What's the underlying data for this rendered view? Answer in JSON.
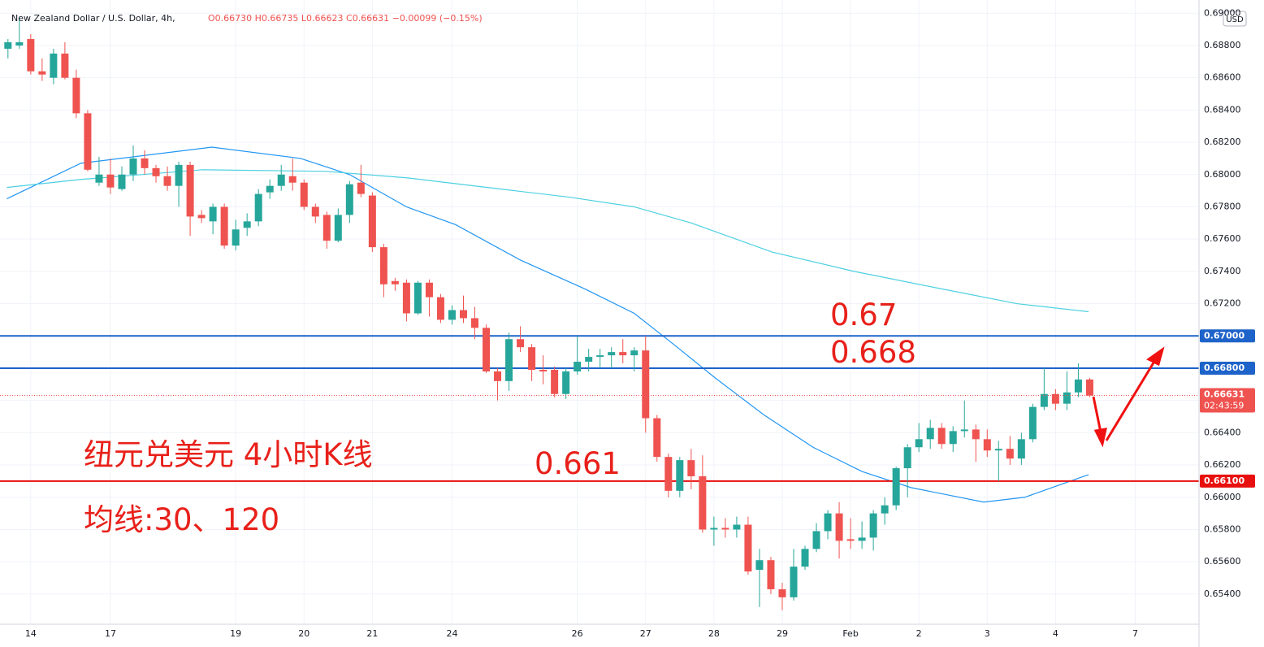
{
  "chart_data": {
    "type": "candlestick",
    "title": "New Zealand Dollar / U.S. Dollar, 4h,",
    "subtitle": "O0.66730 H0.66735 L0.66623 C0.66631 −0.00099 (−0.15%)",
    "currency": "USD",
    "up_color": "#26a69a",
    "down_color": "#ef5350",
    "open": [
      0.6878,
      0.688,
      0.6884,
      0.6864,
      0.686,
      0.6875,
      0.686,
      0.6838,
      0.6795,
      0.68,
      0.6791,
      0.68,
      0.681,
      0.6804,
      0.6799,
      0.6793,
      0.6806,
      0.6775,
      0.6771,
      0.678,
      0.6756,
      0.6767,
      0.6771,
      0.6789,
      0.6793,
      0.6799,
      0.6795,
      0.678,
      0.6775,
      0.6759,
      0.6775,
      0.6795,
      0.6787,
      0.6755,
      0.6734,
      0.6733,
      0.6714,
      0.6733,
      0.6724,
      0.671,
      0.6716,
      0.6711,
      0.6705,
      0.6678,
      0.6672,
      0.6698,
      0.6693,
      0.6679,
      0.6679,
      0.6664,
      0.6678,
      0.6684,
      0.6687,
      0.6688,
      0.669,
      0.6688,
      0.6691,
      0.6649,
      0.6625,
      0.6604,
      0.6623,
      0.6613,
      0.658,
      0.6581,
      0.658,
      0.6583,
      0.6555,
      0.6561,
      0.6543,
      0.6538,
      0.6557,
      0.6568,
      0.6579,
      0.659,
      0.6574,
      0.6573,
      0.6575,
      0.659,
      0.6595,
      0.6618,
      0.6631,
      0.6636,
      0.6643,
      0.6633,
      0.6641,
      0.6642,
      0.6636,
      0.6629,
      0.663,
      0.6624,
      0.6636,
      0.6656,
      0.6664,
      0.6658,
      0.6665,
      0.6673
    ],
    "high": [
      0.6884,
      0.6898,
      0.6887,
      0.6872,
      0.6878,
      0.6882,
      0.6865,
      0.684,
      0.6811,
      0.681,
      0.6805,
      0.6818,
      0.6815,
      0.6806,
      0.6805,
      0.6808,
      0.6808,
      0.6778,
      0.6782,
      0.6782,
      0.6772,
      0.6776,
      0.6791,
      0.6797,
      0.6806,
      0.681,
      0.6797,
      0.6782,
      0.6777,
      0.6779,
      0.6796,
      0.6806,
      0.6789,
      0.6757,
      0.6736,
      0.6735,
      0.6734,
      0.6735,
      0.6726,
      0.6719,
      0.6725,
      0.6718,
      0.6707,
      0.668,
      0.6702,
      0.6706,
      0.6695,
      0.6688,
      0.6681,
      0.668,
      0.67,
      0.6692,
      0.6692,
      0.6693,
      0.6698,
      0.6693,
      0.67,
      0.6651,
      0.6627,
      0.6625,
      0.663,
      0.6626,
      0.6588,
      0.6587,
      0.6588,
      0.6588,
      0.6568,
      0.6563,
      0.6547,
      0.6568,
      0.657,
      0.6584,
      0.6592,
      0.6597,
      0.6587,
      0.6585,
      0.6592,
      0.66,
      0.6619,
      0.6633,
      0.6646,
      0.6648,
      0.6646,
      0.6644,
      0.666,
      0.6645,
      0.6642,
      0.6635,
      0.6638,
      0.664,
      0.6658,
      0.668,
      0.6667,
      0.6678,
      0.6683,
      0.6674
    ],
    "low": [
      0.6872,
      0.6878,
      0.6862,
      0.6858,
      0.6856,
      0.6859,
      0.6835,
      0.6802,
      0.6793,
      0.6788,
      0.679,
      0.6796,
      0.68,
      0.6795,
      0.679,
      0.678,
      0.6762,
      0.677,
      0.6763,
      0.6754,
      0.6753,
      0.6762,
      0.6768,
      0.6785,
      0.679,
      0.679,
      0.6778,
      0.677,
      0.6754,
      0.6758,
      0.677,
      0.6786,
      0.6752,
      0.6724,
      0.6728,
      0.6709,
      0.6713,
      0.6712,
      0.6708,
      0.6707,
      0.6708,
      0.6698,
      0.6677,
      0.666,
      0.6666,
      0.669,
      0.6672,
      0.667,
      0.6662,
      0.6661,
      0.6676,
      0.6678,
      0.668,
      0.668,
      0.6683,
      0.6678,
      0.664,
      0.6622,
      0.66,
      0.66,
      0.6605,
      0.6578,
      0.657,
      0.6575,
      0.6575,
      0.6552,
      0.6532,
      0.654,
      0.653,
      0.6536,
      0.6555,
      0.6566,
      0.6574,
      0.6562,
      0.6568,
      0.6568,
      0.6567,
      0.6583,
      0.6592,
      0.66,
      0.6628,
      0.663,
      0.663,
      0.6628,
      0.6637,
      0.6622,
      0.6625,
      0.661,
      0.662,
      0.662,
      0.6634,
      0.6654,
      0.6654,
      0.6654,
      0.6662,
      0.6662
    ],
    "close": [
      0.6882,
      0.6882,
      0.6864,
      0.6862,
      0.6875,
      0.686,
      0.6838,
      0.6803,
      0.68,
      0.6792,
      0.68,
      0.681,
      0.6804,
      0.6799,
      0.6793,
      0.6806,
      0.6774,
      0.6773,
      0.678,
      0.6756,
      0.6766,
      0.6771,
      0.6788,
      0.6793,
      0.68,
      0.6795,
      0.678,
      0.6774,
      0.6759,
      0.6775,
      0.6794,
      0.6788,
      0.6755,
      0.6732,
      0.6732,
      0.6714,
      0.6733,
      0.6724,
      0.671,
      0.6716,
      0.6711,
      0.6705,
      0.6678,
      0.6672,
      0.6698,
      0.6693,
      0.6679,
      0.6678,
      0.6664,
      0.6678,
      0.6684,
      0.6687,
      0.6688,
      0.669,
      0.6688,
      0.6691,
      0.6649,
      0.6625,
      0.6604,
      0.6623,
      0.6613,
      0.658,
      0.6581,
      0.658,
      0.6583,
      0.6554,
      0.6561,
      0.6543,
      0.6538,
      0.6557,
      0.6568,
      0.6579,
      0.659,
      0.6573,
      0.6573,
      0.6575,
      0.659,
      0.6595,
      0.6618,
      0.6631,
      0.6636,
      0.6643,
      0.6633,
      0.6641,
      0.6642,
      0.6636,
      0.6629,
      0.663,
      0.6624,
      0.6636,
      0.6656,
      0.6664,
      0.6658,
      0.6665,
      0.6673,
      0.6663
    ],
    "series": [
      {
        "color": "#2196f3",
        "x": [
          -0.1,
          6.4,
          17.9,
          25.7,
          30,
          35,
          39.3,
          45,
          50.7,
          55,
          58.6,
          62.1,
          66.4,
          70.7,
          75,
          79.3,
          85.7,
          89.3,
          94.9
        ],
        "values": [
          0.6785,
          0.6807,
          0.6817,
          0.681,
          0.68,
          0.678,
          0.6769,
          0.6747,
          0.6729,
          0.6714,
          0.6694,
          0.6674,
          0.6651,
          0.6631,
          0.6616,
          0.6606,
          0.6597,
          0.66,
          0.6614
        ]
      },
      {
        "color": "#4dd0e1",
        "x": [
          -0.1,
          6.4,
          17.1,
          27.9,
          35,
          42.1,
          49.3,
          55,
          60,
          67.1,
          74.3,
          81.4,
          88.6,
          94.9
        ],
        "values": [
          0.6792,
          0.6797,
          0.6803,
          0.6802,
          0.6798,
          0.6792,
          0.6786,
          0.678,
          0.677,
          0.6752,
          0.674,
          0.673,
          0.672,
          0.6715
        ]
      }
    ],
    "levels": [
      {
        "value": 0.67,
        "label": "0.67000",
        "color": "#1e63c9"
      },
      {
        "value": 0.668,
        "label": "0.66800",
        "color": "#1e63c9"
      },
      {
        "value": 0.661,
        "label": "0.66100",
        "color": "#e8100f"
      }
    ],
    "price_line": {
      "value": 0.66631,
      "label": "0.66631",
      "countdown": "02:43:59",
      "color": "#ef5350"
    },
    "annotations": [
      "0.67",
      "0.668",
      "0.661",
      "纽元兑美元 4小时K线",
      "均线:30、120"
    ],
    "xlim": [
      -0.7,
      104.6
    ],
    "xticks": [
      {
        "value": 2,
        "label": "14"
      },
      {
        "value": 9,
        "label": "17"
      },
      {
        "value": 20,
        "label": "19"
      },
      {
        "value": 26,
        "label": "20"
      },
      {
        "value": 32,
        "label": "21"
      },
      {
        "value": 39,
        "label": "24"
      },
      {
        "value": 50,
        "label": "26"
      },
      {
        "value": 56,
        "label": "27"
      },
      {
        "value": 62,
        "label": "28"
      },
      {
        "value": 68,
        "label": "29"
      },
      {
        "value": 74,
        "label": "Feb"
      },
      {
        "value": 80,
        "label": "2"
      },
      {
        "value": 86,
        "label": "3"
      },
      {
        "value": 92,
        "label": "4"
      },
      {
        "value": 99,
        "label": "7"
      }
    ],
    "ylim": [
      0.65213,
      0.69082
    ],
    "yticks": [
      {
        "value": 0.69,
        "label": "0.69000"
      },
      {
        "value": 0.688,
        "label": "0.68800"
      },
      {
        "value": 0.686,
        "label": "0.68600"
      },
      {
        "value": 0.684,
        "label": "0.68400"
      },
      {
        "value": 0.682,
        "label": "0.68200"
      },
      {
        "value": 0.68,
        "label": "0.68000"
      },
      {
        "value": 0.678,
        "label": "0.67800"
      },
      {
        "value": 0.676,
        "label": "0.67600"
      },
      {
        "value": 0.674,
        "label": "0.67400"
      },
      {
        "value": 0.672,
        "label": "0.67200"
      },
      {
        "value": 0.67,
        "label": "0.67000"
      },
      {
        "value": 0.668,
        "label": "0.66800"
      },
      {
        "value": 0.666,
        "label": "0.66600"
      },
      {
        "value": 0.664,
        "label": "0.66400"
      },
      {
        "value": 0.662,
        "label": "0.66200"
      },
      {
        "value": 0.66,
        "label": "0.66000"
      },
      {
        "value": 0.658,
        "label": "0.65800"
      },
      {
        "value": 0.656,
        "label": "0.65600"
      },
      {
        "value": 0.654,
        "label": "0.65400"
      }
    ],
    "grid": true
  }
}
